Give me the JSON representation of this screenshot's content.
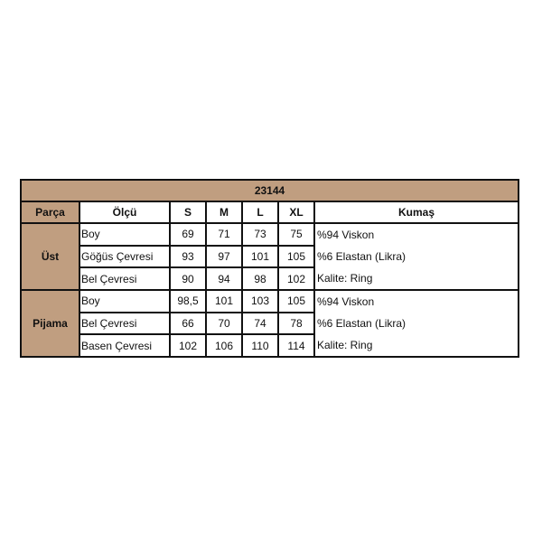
{
  "title": "23144",
  "headers": [
    "Parça",
    "Ölçü",
    "S",
    "M",
    "L",
    "XL",
    "Kumaş"
  ],
  "colors": {
    "header_bg": "#c09e80",
    "border": "#111111"
  },
  "groups": [
    {
      "part": "Üst",
      "rows": [
        {
          "measure": "Boy",
          "values": [
            "69",
            "71",
            "73",
            "75"
          ]
        },
        {
          "measure": "Göğüs Çevresi",
          "values": [
            "93",
            "97",
            "101",
            "105"
          ]
        },
        {
          "measure": "Bel Çevresi",
          "values": [
            "90",
            "94",
            "98",
            "102"
          ]
        }
      ],
      "fabric": [
        "%94 Viskon",
        "%6 Elastan (Likra)",
        "Kalite: Ring"
      ]
    },
    {
      "part": "Pijama",
      "rows": [
        {
          "measure": "Boy",
          "values": [
            "98,5",
            "101",
            "103",
            "105"
          ]
        },
        {
          "measure": "Bel Çevresi",
          "values": [
            "66",
            "70",
            "74",
            "78"
          ]
        },
        {
          "measure": "Basen Çevresi",
          "values": [
            "102",
            "106",
            "110",
            "114"
          ]
        }
      ],
      "fabric": [
        "%94 Viskon",
        "%6 Elastan (Likra)",
        "Kalite: Ring"
      ]
    }
  ]
}
